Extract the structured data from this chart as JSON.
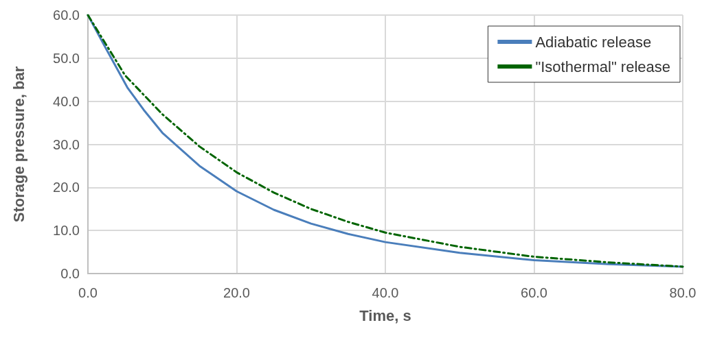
{
  "chart_data": {
    "type": "line",
    "xlabel": "Time, s",
    "ylabel": "Storage pressure, bar",
    "xlim": [
      0,
      80
    ],
    "ylim": [
      0,
      60
    ],
    "xticks": [
      {
        "value": 0,
        "label": "0.0"
      },
      {
        "value": 20,
        "label": "20.0"
      },
      {
        "value": 40,
        "label": "40.0"
      },
      {
        "value": 60,
        "label": "60.0"
      },
      {
        "value": 80,
        "label": "80.0"
      }
    ],
    "yticks": [
      {
        "value": 0,
        "label": "0.0"
      },
      {
        "value": 10,
        "label": "10.0"
      },
      {
        "value": 20,
        "label": "20.0"
      },
      {
        "value": 30,
        "label": "30.0"
      },
      {
        "value": 40,
        "label": "40.0"
      },
      {
        "value": 50,
        "label": "50.0"
      },
      {
        "value": 60,
        "label": "60.0"
      }
    ],
    "grid": true,
    "legend": "top right",
    "marker": "none",
    "series": [
      {
        "name": "Adiabatic release",
        "color": "#4a7ebb",
        "line_style": "solid",
        "x": [
          0,
          2.5,
          5.3,
          7.5,
          10,
          15,
          20,
          25,
          30,
          35,
          40,
          50,
          60,
          70,
          80
        ],
        "values": [
          60,
          52,
          43.2,
          38,
          32.7,
          25,
          19.1,
          14.8,
          11.6,
          9.2,
          7.3,
          4.8,
          3.1,
          2.2,
          1.6
        ]
      },
      {
        "name": "\"Isothermal\" release",
        "color": "#006400",
        "line_style": "dashed",
        "x": [
          0,
          5,
          10,
          15,
          20,
          25,
          30,
          35,
          40,
          50,
          60,
          70,
          80
        ],
        "values": [
          60,
          46,
          37,
          29.5,
          23.5,
          18.8,
          15,
          12,
          9.5,
          6.2,
          3.9,
          2.6,
          1.6
        ]
      }
    ]
  }
}
